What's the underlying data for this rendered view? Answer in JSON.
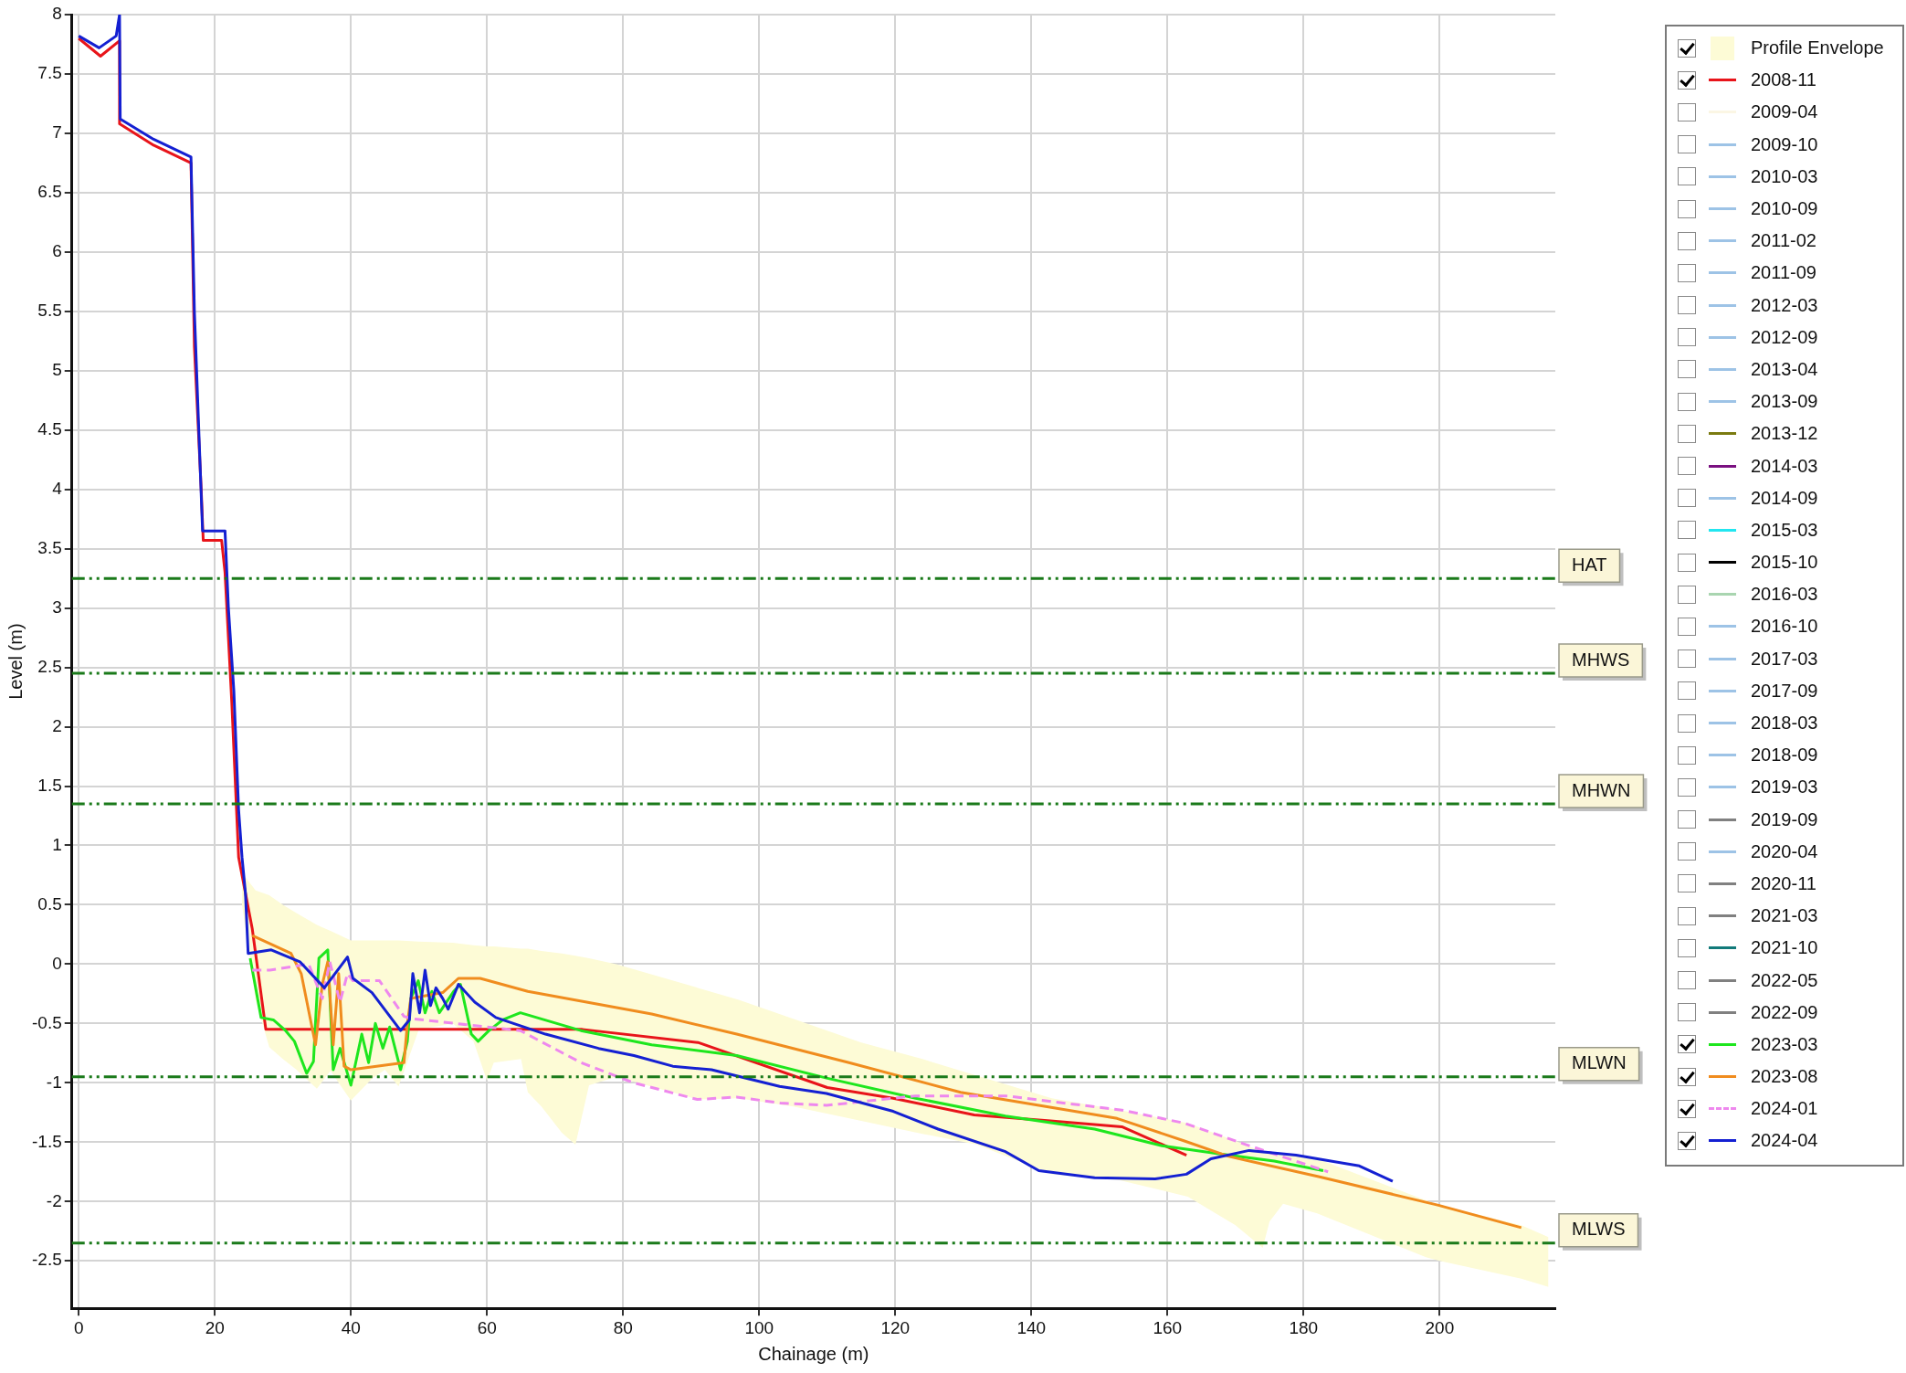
{
  "chart_data": {
    "type": "line",
    "xlabel": "Chainage (m)",
    "ylabel": "Level (m)",
    "xlim": [
      -1,
      217
    ],
    "xticks": [
      0,
      20,
      40,
      60,
      80,
      100,
      120,
      140,
      160,
      180,
      200
    ],
    "ylim": [
      -2.9,
      8
    ],
    "yticks": [
      -2.5,
      -2,
      -1.5,
      -1,
      -0.5,
      0,
      0.5,
      1,
      1.5,
      2,
      2.5,
      3,
      3.5,
      4,
      4.5,
      5,
      5.5,
      6,
      6.5,
      7,
      7.5,
      8
    ],
    "grid": true,
    "legend": "right",
    "marker": "none",
    "ref_lines": [
      {
        "axis": "y",
        "value": 3.25,
        "label": "HAT",
        "color": "#1a7a1a"
      },
      {
        "axis": "y",
        "value": 2.45,
        "label": "MHWS",
        "color": "#1a7a1a"
      },
      {
        "axis": "y",
        "value": 1.35,
        "label": "MHWN",
        "color": "#1a7a1a"
      },
      {
        "axis": "y",
        "value": -0.95,
        "label": "MLWN",
        "color": "#1a7a1a"
      },
      {
        "axis": "y",
        "value": -2.35,
        "label": "MLWS",
        "color": "#1a7a1a"
      }
    ],
    "series": [
      {
        "name": "Profile Envelope",
        "type": "area",
        "color": "#fdfbd6",
        "x": [
          24,
          26,
          28,
          30,
          32,
          35,
          37,
          40,
          43,
          45,
          47,
          50,
          55,
          58,
          60,
          61,
          65,
          66,
          68,
          71,
          73,
          75,
          79,
          91,
          97,
          105,
          115,
          124,
          132,
          143,
          153,
          163,
          170,
          174,
          175,
          177,
          182,
          198,
          200,
          212,
          216
        ],
        "values": [
          null,
          null,
          null,
          null,
          null,
          null,
          null,
          null,
          null,
          null,
          null,
          null,
          null,
          null,
          null,
          null,
          null,
          null,
          null,
          null,
          null,
          null,
          null,
          null,
          null,
          null,
          null,
          null,
          null,
          null,
          null,
          null,
          null,
          null,
          null,
          null,
          null,
          null,
          null,
          null,
          null
        ],
        "upper": [
          0.77,
          0.62,
          0.58,
          0.5,
          0.43,
          0.33,
          0.28,
          0.2,
          0.2,
          0.2,
          0.2,
          0.19,
          0.18,
          0.16,
          0.15,
          0.15,
          0.13,
          0.13,
          0.11,
          0.09,
          0.07,
          0.05,
          0,
          -0.2,
          -0.3,
          -0.46,
          -0.66,
          -0.8,
          -0.94,
          -1.13,
          -1.23,
          -1.34,
          -1.49,
          -1.58,
          -1.6,
          -1.59,
          -1.64,
          -1.99,
          -2.03,
          -2.2,
          -2.3
        ],
        "lower": [
          0.5,
          -0.3,
          -0.7,
          -0.8,
          -0.89,
          -1.05,
          -0.9,
          -1.15,
          -0.97,
          -0.89,
          -1.03,
          -0.55,
          -0.5,
          -0.65,
          -0.98,
          -0.83,
          -0.8,
          -1.08,
          -1.2,
          -1.42,
          -1.52,
          -1.02,
          -0.95,
          -1.14,
          -1.13,
          -1.2,
          -1.32,
          -1.43,
          -1.52,
          -1.77,
          -1.82,
          -1.96,
          -2.2,
          -2.39,
          -2.17,
          -2.02,
          -2.1,
          -2.47,
          -2.5,
          -2.65,
          -2.72
        ]
      },
      {
        "name": "2008-11",
        "color": "#e8141a",
        "x": [
          0,
          3.2,
          6,
          6,
          11,
          16.5,
          17,
          18,
          18.3,
          21,
          21.5,
          22.5,
          23.5,
          25.5,
          27.5,
          47,
          74,
          91,
          110,
          119.7,
          131.6,
          142.8,
          153.3,
          162.8
        ],
        "values": [
          7.8,
          7.65,
          7.78,
          7.08,
          6.9,
          6.75,
          5.2,
          4,
          3.57,
          3.57,
          3.3,
          2.2,
          0.9,
          0.3,
          -0.55,
          -0.55,
          -0.55,
          -0.66,
          -1.04,
          -1.13,
          -1.27,
          -1.32,
          -1.37,
          -1.61
        ]
      },
      {
        "name": "2009-04",
        "color": "#fbf6e4"
      },
      {
        "name": "2009-10",
        "color": "#9dc3e6"
      },
      {
        "name": "2010-03",
        "color": "#9dc3e6"
      },
      {
        "name": "2010-09",
        "color": "#9dc3e6"
      },
      {
        "name": "2011-02",
        "color": "#9dc3e6"
      },
      {
        "name": "2011-09",
        "color": "#9dc3e6"
      },
      {
        "name": "2012-03",
        "color": "#9dc3e6"
      },
      {
        "name": "2012-09",
        "color": "#9dc3e6"
      },
      {
        "name": "2013-04",
        "color": "#9dc3e6"
      },
      {
        "name": "2013-09",
        "color": "#9dc3e6"
      },
      {
        "name": "2013-12",
        "color": "#7a7a10"
      },
      {
        "name": "2014-03",
        "color": "#7a1080"
      },
      {
        "name": "2014-09",
        "color": "#9dc3e6"
      },
      {
        "name": "2015-03",
        "color": "#22e6f0"
      },
      {
        "name": "2015-10",
        "color": "#000000"
      },
      {
        "name": "2016-03",
        "color": "#a9d5b0"
      },
      {
        "name": "2016-10",
        "color": "#9dc3e6"
      },
      {
        "name": "2017-03",
        "color": "#9dc3e6"
      },
      {
        "name": "2017-09",
        "color": "#9dc3e6"
      },
      {
        "name": "2018-03",
        "color": "#9dc3e6"
      },
      {
        "name": "2018-09",
        "color": "#9dc3e6"
      },
      {
        "name": "2019-03",
        "color": "#9dc3e6"
      },
      {
        "name": "2019-09",
        "color": "#808080"
      },
      {
        "name": "2020-04",
        "color": "#9dc3e6"
      },
      {
        "name": "2020-11",
        "color": "#808080"
      },
      {
        "name": "2021-03",
        "color": "#808080"
      },
      {
        "name": "2021-10",
        "color": "#127a7a"
      },
      {
        "name": "2022-05",
        "color": "#808080"
      },
      {
        "name": "2022-09",
        "color": "#808080"
      },
      {
        "name": "2023-03",
        "color": "#1ee61e",
        "x": [
          25.2,
          26.8,
          28.6,
          30.4,
          31.7,
          33.5,
          34.5,
          35.3,
          36.6,
          37.4,
          38.4,
          40,
          41.6,
          42.6,
          43.6,
          44.7,
          45.7,
          47.3,
          48.3,
          48.8,
          49.9,
          50.9,
          51.9,
          53,
          55.1,
          56.1,
          57.7,
          58.7,
          60.3,
          62.3,
          64.9,
          73.8,
          84.2,
          96.7,
          109.9,
          123,
          136.2,
          149.3,
          159.2,
          167.8,
          175.7,
          182.9
        ],
        "values": [
          0.05,
          -0.45,
          -0.47,
          -0.56,
          -0.65,
          -0.92,
          -0.82,
          0.05,
          0.12,
          -0.89,
          -0.71,
          -1.02,
          -0.59,
          -0.83,
          -0.5,
          -0.71,
          -0.53,
          -0.89,
          -0.65,
          -0.29,
          -0.14,
          -0.41,
          -0.23,
          -0.41,
          -0.23,
          -0.17,
          -0.59,
          -0.65,
          -0.56,
          -0.47,
          -0.41,
          -0.56,
          -0.68,
          -0.77,
          -0.96,
          -1.13,
          -1.28,
          -1.39,
          -1.53,
          -1.6,
          -1.66,
          -1.74
        ]
      },
      {
        "name": "2023-08",
        "color": "#f08c1e",
        "x": [
          25.5,
          31.2,
          32.7,
          34.8,
          35.8,
          36.6,
          37.4,
          38.2,
          39,
          40,
          47.8,
          48.3,
          48.8,
          53.5,
          55.8,
          59,
          66,
          84.2,
          96.7,
          113.2,
          129.6,
          152.6,
          162.5,
          169,
          182.2,
          199.7,
          212
        ],
        "values": [
          0.24,
          0.09,
          -0.08,
          -0.68,
          -0.17,
          0.02,
          -0.68,
          -0.08,
          -0.86,
          -0.89,
          -0.83,
          -0.5,
          -0.29,
          -0.24,
          -0.12,
          -0.12,
          -0.23,
          -0.42,
          -0.59,
          -0.83,
          -1.08,
          -1.3,
          -1.49,
          -1.62,
          -1.79,
          -2.03,
          -2.22
        ]
      },
      {
        "name": "2024-01",
        "color": "#ee88ee",
        "line_style": "dashed",
        "x": [
          25.5,
          28.1,
          33.8,
          35.8,
          36.9,
          38.4,
          39.5,
          40.3,
          44.2,
          47.8,
          49,
          64.9,
          73.8,
          81.6,
          90.9,
          96.7,
          103.1,
          109.9,
          123,
          136.2,
          153.3,
          162.5,
          171,
          183.6
        ],
        "values": [
          -0.05,
          -0.05,
          0,
          -0.29,
          0.02,
          -0.32,
          -0.08,
          -0.14,
          -0.14,
          -0.44,
          -0.46,
          -0.56,
          -0.83,
          -1,
          -1.14,
          -1.12,
          -1.17,
          -1.19,
          -1.11,
          -1.11,
          -1.23,
          -1.34,
          -1.51,
          -1.75
        ]
      },
      {
        "name": "2024-04",
        "color": "#1420d2",
        "x": [
          0,
          3,
          5.5,
          6,
          6.1,
          11,
          16.5,
          17,
          18.2,
          21.5,
          22,
          22.8,
          23.5,
          24,
          24.5,
          24.9,
          28.3,
          32.5,
          36.1,
          39.5,
          40.3,
          43.1,
          47.3,
          48.6,
          49.1,
          50.1,
          50.9,
          51.7,
          52.5,
          53.5,
          54.3,
          55.8,
          58.2,
          61.3,
          68.6,
          76.4,
          81.6,
          87.3,
          93,
          103,
          109.9,
          119.7,
          126.3,
          136.2,
          141.1,
          149.3,
          158.2,
          162.8,
          166.4,
          172,
          178.9,
          188.2,
          193.1
        ],
        "values": [
          7.82,
          7.72,
          7.82,
          8,
          7.12,
          6.95,
          6.8,
          5.5,
          3.65,
          3.65,
          3,
          2.3,
          1.3,
          0.9,
          0.6,
          0.09,
          0.12,
          0.02,
          -0.2,
          0.06,
          -0.12,
          -0.24,
          -0.56,
          -0.47,
          -0.08,
          -0.41,
          -0.05,
          -0.35,
          -0.2,
          -0.29,
          -0.38,
          -0.17,
          -0.32,
          -0.45,
          -0.59,
          -0.71,
          -0.77,
          -0.86,
          -0.89,
          -1.03,
          -1.09,
          -1.24,
          -1.39,
          -1.58,
          -1.74,
          -1.8,
          -1.81,
          -1.77,
          -1.64,
          -1.57,
          -1.61,
          -1.7,
          -1.83
        ]
      }
    ]
  }
}
